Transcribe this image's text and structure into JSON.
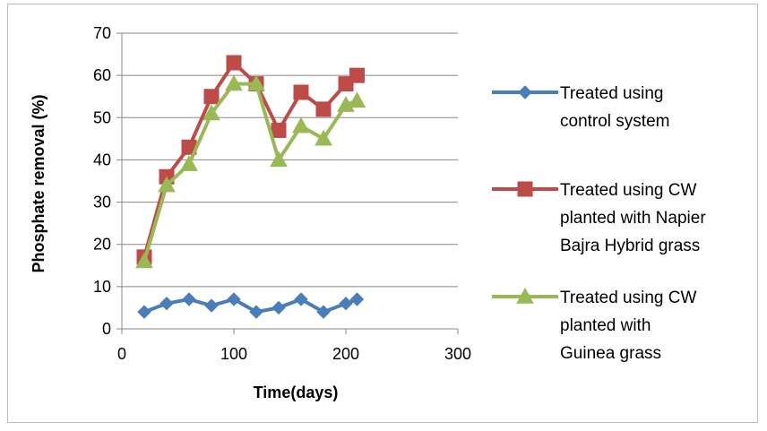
{
  "chart_data": {
    "type": "line",
    "title": "",
    "xlabel": "Time(days)",
    "ylabel": "Phosphate removal (%)",
    "xlim": [
      0,
      300
    ],
    "ylim": [
      0,
      70
    ],
    "xticks": [
      0,
      100,
      200,
      300
    ],
    "yticks": [
      0,
      10,
      20,
      30,
      40,
      50,
      60,
      70
    ],
    "grid": "horizontal",
    "legend_position": "right",
    "series": [
      {
        "name": "Treated using control system",
        "legend_lines": [
          "Treated using",
          "control system"
        ],
        "color": "#4a7ebb",
        "marker": "diamond",
        "x": [
          20,
          40,
          60,
          80,
          100,
          120,
          140,
          160,
          180,
          200,
          210
        ],
        "y": [
          4,
          6,
          7,
          5.5,
          7,
          4,
          5,
          7,
          4,
          6,
          7
        ]
      },
      {
        "name": "Treated using CW planted with Napier Bajra Hybrid grass",
        "legend_lines": [
          "Treated using CW",
          "planted with Napier",
          "Bajra Hybrid grass"
        ],
        "color": "#be4b48",
        "marker": "square",
        "x": [
          20,
          40,
          60,
          80,
          100,
          120,
          140,
          160,
          180,
          200,
          210
        ],
        "y": [
          17,
          36,
          43,
          55,
          63,
          58,
          47,
          56,
          52,
          58,
          60
        ]
      },
      {
        "name": "Treated using CW planted with Guinea grass",
        "legend_lines": [
          "Treated using CW",
          "planted with",
          "Guinea grass"
        ],
        "color": "#98b954",
        "marker": "triangle",
        "x": [
          20,
          40,
          60,
          80,
          100,
          120,
          140,
          160,
          180,
          200,
          210
        ],
        "y": [
          16,
          34,
          39,
          51,
          58,
          58,
          40,
          48,
          45,
          53,
          54
        ]
      }
    ]
  }
}
